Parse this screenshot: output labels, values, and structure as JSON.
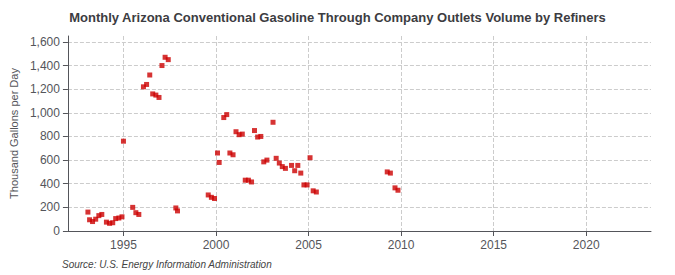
{
  "chart_data": {
    "type": "scatter",
    "title": "Monthly Arizona Conventional Gasoline Through Company Outlets Volume by Refiners",
    "ylabel": "Thousand Gallons per Day",
    "source": "Source: U.S. Energy Information Administration",
    "color": "#cc0000",
    "marker": "square",
    "grid": true,
    "xlim": [
      1992.0,
      2023.5
    ],
    "ylim": [
      0,
      1650
    ],
    "xticks": [
      1995,
      2000,
      2005,
      2010,
      2015,
      2020
    ],
    "yticks": [
      0,
      200,
      400,
      600,
      800,
      {
        "value": 1000,
        "label": "1,000"
      },
      {
        "value": 1200,
        "label": "1,200"
      },
      {
        "value": 1400,
        "label": "1,400"
      },
      {
        "value": 1600,
        "label": "1,600"
      }
    ],
    "x": [
      1993.08,
      1993.17,
      1993.33,
      1993.5,
      1993.67,
      1993.83,
      1994.08,
      1994.25,
      1994.42,
      1994.58,
      1994.75,
      1994.92,
      1995.0,
      1995.5,
      1995.67,
      1995.83,
      1996.08,
      1996.25,
      1996.42,
      1996.58,
      1996.75,
      1996.92,
      1997.08,
      1997.25,
      1997.42,
      1997.83,
      1997.92,
      1999.58,
      1999.75,
      1999.92,
      2000.08,
      2000.17,
      2000.42,
      2000.58,
      2000.75,
      2000.92,
      2001.08,
      2001.25,
      2001.42,
      2001.58,
      2001.75,
      2001.92,
      2002.08,
      2002.25,
      2002.42,
      2002.58,
      2002.75,
      2003.08,
      2003.25,
      2003.42,
      2003.58,
      2003.75,
      2004.08,
      2004.25,
      2004.42,
      2004.58,
      2004.75,
      2004.92,
      2005.08,
      2005.25,
      2005.42,
      2009.25,
      2009.42,
      2009.67,
      2009.83
    ],
    "values": [
      160,
      95,
      80,
      100,
      130,
      140,
      75,
      65,
      70,
      105,
      110,
      120,
      760,
      200,
      155,
      140,
      1220,
      1240,
      1320,
      1160,
      1150,
      1130,
      1400,
      1470,
      1450,
      195,
      170,
      305,
      285,
      275,
      660,
      580,
      960,
      985,
      660,
      645,
      840,
      815,
      820,
      430,
      430,
      415,
      850,
      795,
      800,
      585,
      600,
      920,
      615,
      575,
      545,
      530,
      555,
      510,
      555,
      490,
      390,
      390,
      620,
      340,
      330,
      500,
      490,
      365,
      345
    ]
  }
}
